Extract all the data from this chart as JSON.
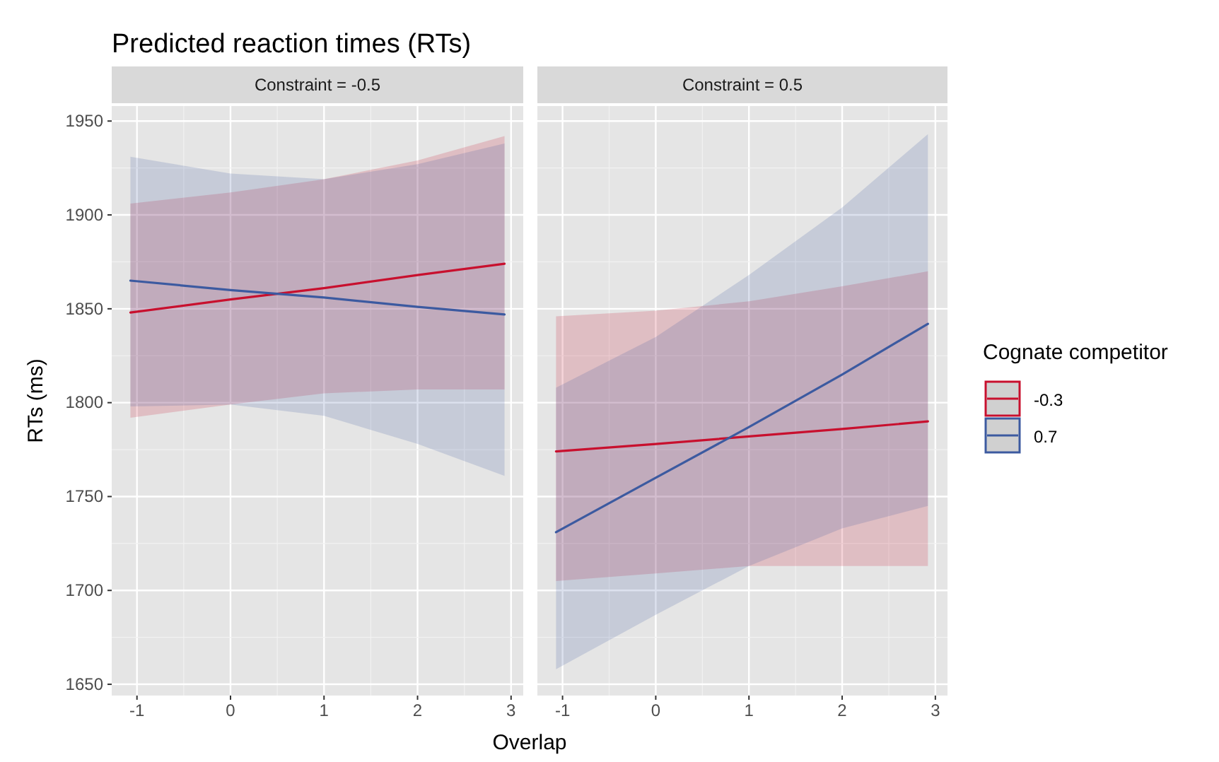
{
  "chart_data": [
    {
      "type": "line",
      "title": "Predicted reaction times (RTs)",
      "subtitle": "Constraint = -0.5",
      "xlabel": "Overlap",
      "ylabel": "RTs (ms)",
      "x": [
        -1.07,
        0,
        1,
        2,
        2.93
      ],
      "xlim": [
        -1.27,
        3.13
      ],
      "xticks": [
        -1,
        0,
        1,
        2,
        3
      ],
      "ylim": [
        1644,
        1958
      ],
      "yticks": [
        1650,
        1700,
        1750,
        1800,
        1850,
        1900,
        1950
      ],
      "grid": true,
      "legend": "right",
      "legend_title": "Cognate competitor",
      "series": [
        {
          "name": "-0.3",
          "color": "#c8102e",
          "values": [
            1848,
            1855,
            1861,
            1868,
            1874
          ],
          "lower": [
            1792,
            1799,
            1805,
            1807,
            1807
          ],
          "upper": [
            1906,
            1912,
            1919,
            1929,
            1942
          ]
        },
        {
          "name": "0.7",
          "color": "#3c5aa0",
          "values": [
            1865,
            1860,
            1856,
            1851,
            1847
          ],
          "lower": [
            1798,
            1799,
            1793,
            1778,
            1761
          ],
          "upper": [
            1931,
            1922,
            1919,
            1927,
            1938
          ]
        }
      ]
    },
    {
      "type": "line",
      "subtitle": "Constraint = 0.5",
      "x": [
        -1.07,
        0,
        1,
        2,
        2.92
      ],
      "xlim": [
        -1.27,
        3.13
      ],
      "xticks": [
        -1,
        0,
        1,
        2,
        3
      ],
      "ylim": [
        1644,
        1958
      ],
      "yticks": [
        1650,
        1700,
        1750,
        1800,
        1850,
        1900,
        1950
      ],
      "tick_labels": "x",
      "grid": true,
      "series": [
        {
          "color": "#c8102e",
          "values": [
            1774,
            1778,
            1782,
            1786,
            1790
          ],
          "lower": [
            1705,
            1709,
            1713,
            1713,
            1713
          ],
          "upper": [
            1846,
            1849,
            1854,
            1862,
            1870
          ]
        },
        {
          "color": "#3c5aa0",
          "values": [
            1731,
            1760,
            1787,
            1815,
            1842
          ],
          "lower": [
            1658,
            1687,
            1713,
            1733,
            1745
          ],
          "upper": [
            1808,
            1835,
            1868,
            1904,
            1943
          ]
        }
      ]
    }
  ]
}
